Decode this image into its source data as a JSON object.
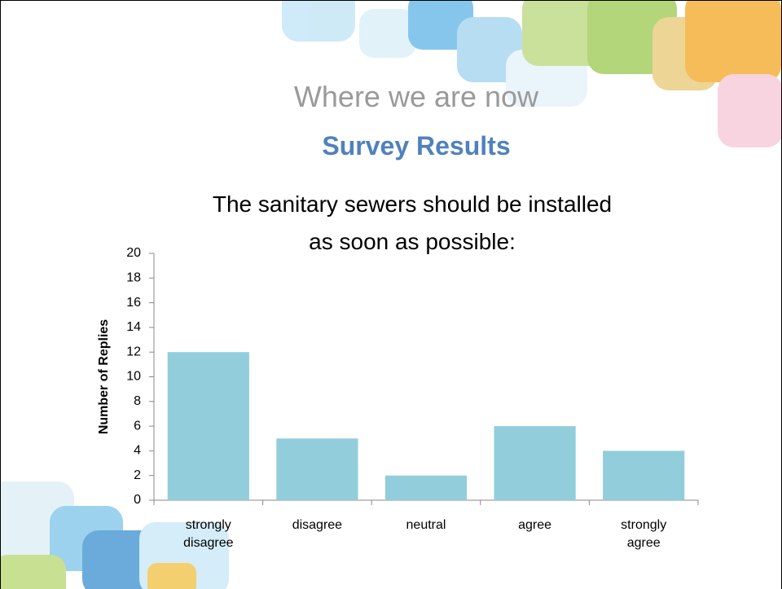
{
  "heading": "Where we are now",
  "subheading": "Survey Results",
  "chart_data": {
    "type": "bar",
    "title": "The sanitary sewers should be installed\nas soon as possible:",
    "y_label": "Number of Replies",
    "categories": [
      "strongly disagree",
      "disagree",
      "neutral",
      "agree",
      "strongly agree"
    ],
    "values": [
      12,
      5,
      2,
      6,
      4
    ],
    "color": "#92cddc",
    "ylim": [
      0,
      20
    ],
    "yticks": [
      0,
      2,
      4,
      6,
      8,
      10,
      12,
      14,
      16,
      18,
      20
    ],
    "grid": false
  }
}
